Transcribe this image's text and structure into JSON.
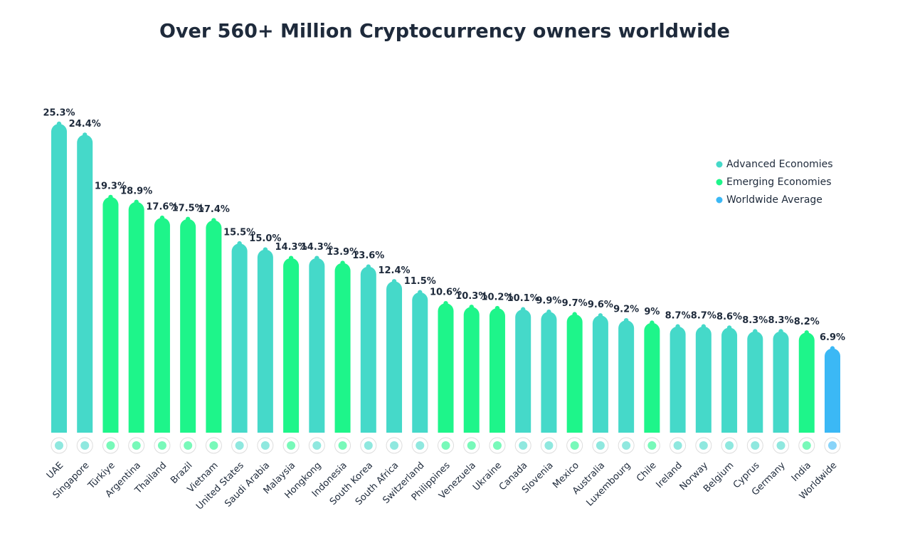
{
  "chart_data": {
    "type": "bar",
    "title": "Over 560+ Million Cryptocurrency owners worldwide",
    "legend": [
      {
        "name": "Advanced Economies",
        "color": "#45d9c9"
      },
      {
        "name": "Emerging Economies",
        "color": "#1ef58a"
      },
      {
        "name": "Worldwide Average",
        "color": "#3bb8f5"
      }
    ],
    "legend_position": "upper right",
    "categories": [
      "UAE",
      "Singapore",
      "Türkiye",
      "Argentina",
      "Thailand",
      "Brazil",
      "Vietnam",
      "United States",
      "Saudi Arabia",
      "Malaysia",
      "Hongkong",
      "Indonesia",
      "South Korea",
      "South Africa",
      "Switzerland",
      "Philippines",
      "Venezuela",
      "Ukraine",
      "Canada",
      "Slovenia",
      "Mexico",
      "Australia",
      "Luxembourg",
      "Chile",
      "Ireland",
      "Norway",
      "Belgium",
      "Cyprus",
      "Germany",
      "India",
      "Worldwide"
    ],
    "groups": [
      0,
      0,
      1,
      1,
      1,
      1,
      1,
      0,
      0,
      1,
      0,
      1,
      0,
      0,
      0,
      1,
      1,
      1,
      0,
      0,
      1,
      0,
      0,
      1,
      0,
      0,
      0,
      0,
      0,
      1,
      2
    ],
    "values": [
      25.3,
      24.4,
      19.3,
      18.9,
      17.6,
      17.5,
      17.4,
      15.5,
      15.0,
      14.3,
      14.3,
      13.9,
      13.6,
      12.4,
      11.5,
      10.6,
      10.3,
      10.2,
      10.1,
      9.9,
      9.7,
      9.6,
      9.2,
      9,
      8.7,
      8.7,
      8.6,
      8.3,
      8.3,
      8.2,
      6.9
    ],
    "value_labels": [
      "25.3%",
      "24.4%",
      "19.3%",
      "18.9%",
      "17.6%",
      "17.5%",
      "17.4%",
      "15.5%",
      "15.0%",
      "14.3%",
      "14.3%",
      "13.9%",
      "13.6%",
      "12.4%",
      "11.5%",
      "10.6%",
      "10.3%",
      "10.2%",
      "10.1%",
      "9.9%",
      "9.7%",
      "9.6%",
      "9.2%",
      "9%",
      "8.7%",
      "8.7%",
      "8.6%",
      "8.3%",
      "8.3%",
      "8.2%",
      "6.9%"
    ]
  }
}
